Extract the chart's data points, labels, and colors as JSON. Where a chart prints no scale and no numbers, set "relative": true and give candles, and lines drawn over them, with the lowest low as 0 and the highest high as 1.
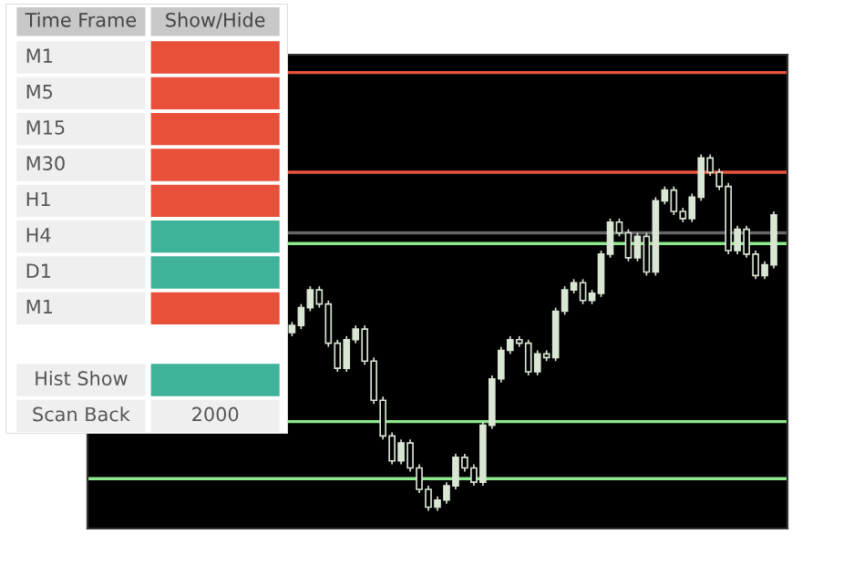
{
  "chart_data": [
    {
      "type": "other",
      "annotations": [
        "Time Frame",
        "Show/Hide"
      ],
      "categories": [
        "M1",
        "M5",
        "M15",
        "M30",
        "H1",
        "H4",
        "D1",
        "M1",
        "Hist Show",
        "Scan Back"
      ],
      "value_labels": [
        null,
        null,
        null,
        null,
        null,
        null,
        null,
        null,
        null,
        "2000"
      ]
    },
    {
      "type": "candlestick",
      "relative": true,
      "color": "#d9e6d4",
      "categories": [
        null,
        null,
        null,
        null,
        null,
        null,
        null,
        null,
        null,
        null,
        null,
        null,
        null,
        null,
        null,
        null,
        null,
        null,
        null,
        null,
        null,
        null,
        null,
        null,
        null,
        null,
        null,
        null,
        null,
        null,
        null,
        null,
        null,
        null,
        null,
        null,
        null,
        null,
        null,
        null,
        null,
        null,
        null,
        null,
        null,
        null,
        null,
        null,
        null,
        null,
        null,
        null,
        null,
        null,
        null,
        null,
        null,
        null,
        null,
        null,
        null,
        null,
        null,
        null,
        null,
        null,
        null,
        null,
        null,
        null,
        null,
        null,
        null,
        null,
        null,
        null,
        null
      ],
      "ohlc": [
        null,
        null,
        null,
        null,
        null,
        null,
        null,
        null,
        null,
        null,
        null,
        null,
        null,
        null,
        null,
        null,
        null,
        null,
        null,
        null,
        null,
        null,
        [
          0.5,
          0.53,
          0.49,
          0.52
        ],
        [
          0.52,
          0.58,
          0.51,
          0.57
        ],
        [
          0.57,
          0.63,
          0.56,
          0.62
        ],
        [
          0.62,
          0.63,
          0.57,
          0.58
        ],
        [
          0.58,
          0.59,
          0.46,
          0.47
        ],
        [
          0.47,
          0.48,
          0.39,
          0.4
        ],
        [
          0.4,
          0.49,
          0.39,
          0.48
        ],
        [
          0.48,
          0.52,
          0.47,
          0.51
        ],
        [
          0.51,
          0.52,
          0.41,
          0.42
        ],
        [
          0.42,
          0.43,
          0.3,
          0.31
        ],
        [
          0.31,
          0.32,
          0.2,
          0.21
        ],
        [
          0.21,
          0.22,
          0.13,
          0.14
        ],
        [
          0.14,
          0.2,
          0.13,
          0.19
        ],
        [
          0.19,
          0.2,
          0.11,
          0.12
        ],
        [
          0.12,
          0.13,
          0.05,
          0.06
        ],
        [
          0.06,
          0.07,
          0.0,
          0.01
        ],
        [
          0.01,
          0.04,
          0.0,
          0.03
        ],
        [
          0.03,
          0.08,
          0.02,
          0.07
        ],
        [
          0.07,
          0.16,
          0.06,
          0.15
        ],
        [
          0.15,
          0.16,
          0.11,
          0.12
        ],
        [
          0.12,
          0.13,
          0.07,
          0.08
        ],
        [
          0.08,
          0.25,
          0.07,
          0.24
        ],
        [
          0.24,
          0.38,
          0.23,
          0.37
        ],
        [
          0.37,
          0.46,
          0.36,
          0.45
        ],
        [
          0.45,
          0.49,
          0.44,
          0.48
        ],
        [
          0.48,
          0.49,
          0.46,
          0.47
        ],
        [
          0.47,
          0.48,
          0.38,
          0.39
        ],
        [
          0.39,
          0.45,
          0.38,
          0.44
        ],
        [
          0.44,
          0.45,
          0.42,
          0.43
        ],
        [
          0.43,
          0.57,
          0.42,
          0.56
        ],
        [
          0.56,
          0.63,
          0.55,
          0.62
        ],
        [
          0.62,
          0.65,
          0.61,
          0.64
        ],
        [
          0.64,
          0.65,
          0.58,
          0.59
        ],
        [
          0.59,
          0.62,
          0.58,
          0.61
        ],
        [
          0.61,
          0.73,
          0.6,
          0.72
        ],
        [
          0.72,
          0.82,
          0.71,
          0.81
        ],
        [
          0.81,
          0.82,
          0.77,
          0.78
        ],
        [
          0.78,
          0.79,
          0.7,
          0.71
        ],
        [
          0.71,
          0.78,
          0.7,
          0.77
        ],
        [
          0.77,
          0.78,
          0.66,
          0.67
        ],
        [
          0.67,
          0.88,
          0.66,
          0.87
        ],
        [
          0.87,
          0.91,
          0.86,
          0.9
        ],
        [
          0.9,
          0.91,
          0.83,
          0.84
        ],
        [
          0.84,
          0.85,
          0.81,
          0.82
        ],
        [
          0.82,
          0.89,
          0.81,
          0.88
        ],
        [
          0.88,
          1.0,
          0.87,
          0.99
        ],
        [
          0.99,
          1.0,
          0.94,
          0.95
        ],
        [
          0.95,
          0.96,
          0.9,
          0.91
        ],
        [
          0.91,
          0.92,
          0.72,
          0.73
        ],
        [
          0.73,
          0.8,
          0.72,
          0.79
        ],
        [
          0.79,
          0.8,
          0.71,
          0.72
        ],
        [
          0.72,
          0.73,
          0.65,
          0.66
        ],
        [
          0.66,
          0.7,
          0.65,
          0.69
        ],
        [
          0.69,
          0.84,
          0.68,
          0.83
        ],
        null
      ],
      "ref_lines": [
        {
          "axis": "y",
          "value": 0.78,
          "color": "#666666"
        },
        {
          "axis": "y",
          "value": 1.23,
          "color": "#e8553f"
        },
        {
          "axis": "y",
          "value": 0.95,
          "color": "#e8553f"
        },
        {
          "axis": "y",
          "value": 0.75,
          "color": "#8ee88e"
        },
        {
          "axis": "y",
          "value": 0.25,
          "color": "#8ee88e"
        },
        {
          "axis": "y",
          "value": 0.09,
          "color": "#8ee88e"
        }
      ]
    }
  ]
}
